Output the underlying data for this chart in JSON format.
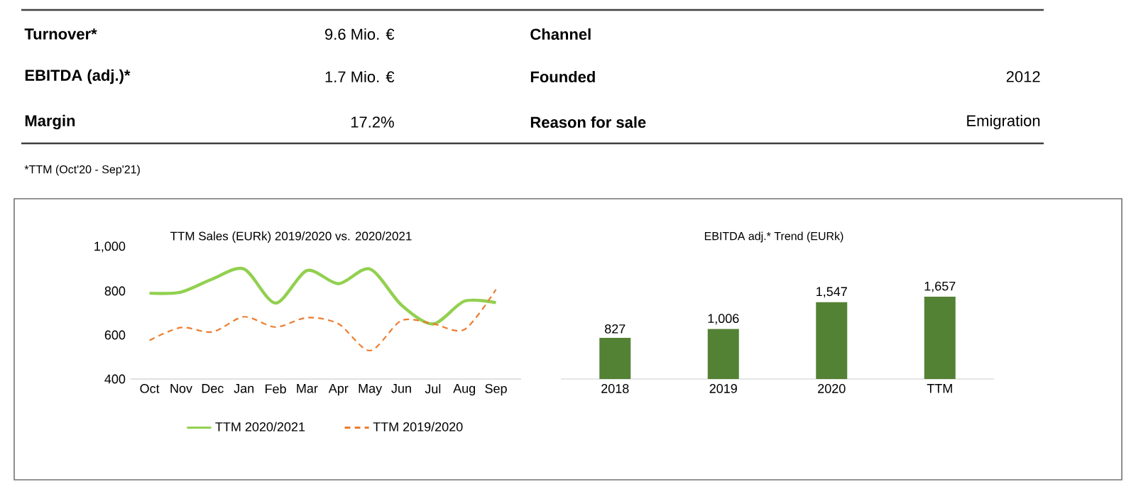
{
  "chart_data": [
    {
      "type": "other",
      "annotations": [
        "Turnover*",
        "9.6 Mio. €",
        "Channel",
        "EBITDA (adj.)*",
        "1.7 Mio. €",
        "Founded",
        "2012",
        "Margin",
        "17.2%",
        "Reason for sale",
        "Emigration",
        "*TTM (Oct'20 - Sep'21)"
      ]
    },
    {
      "type": "line",
      "title": "TTM Sales (EURk) 2019/2020 vs. 2020/2021",
      "categories": [
        "Oct",
        "Nov",
        "Dec",
        "Jan",
        "Feb",
        "Mar",
        "Apr",
        "May",
        "Jun",
        "Jul",
        "Aug",
        "Sep"
      ],
      "ylim": [
        400,
        1000
      ],
      "yticks": [
        400,
        600,
        800,
        {
          "value": 1000,
          "label": "1,000"
        }
      ],
      "legend": "bottom",
      "series": [
        {
          "name": "TTM 2020/2021",
          "color": "#92d050",
          "line_style": "solid",
          "values": [
            790,
            795,
            855,
            900,
            745,
            893,
            833,
            900,
            736,
            650,
            754,
            747
          ]
        },
        {
          "name": "TTM 2019/2020",
          "color": "#ed7d31",
          "line_style": "dashed",
          "values": [
            576,
            634,
            614,
            683,
            636,
            679,
            651,
            529,
            666,
            651,
            625,
            807
          ]
        }
      ]
    },
    {
      "type": "bar",
      "title": "EBITDA adj.* Trend (EURk)",
      "categories": [
        "2018",
        "2019",
        "2020",
        "TTM"
      ],
      "values": [
        827,
        1006,
        1547,
        1657
      ],
      "value_labels": [
        "827",
        "1,006",
        "1,547",
        "1,657"
      ],
      "color": "#548235"
    }
  ]
}
